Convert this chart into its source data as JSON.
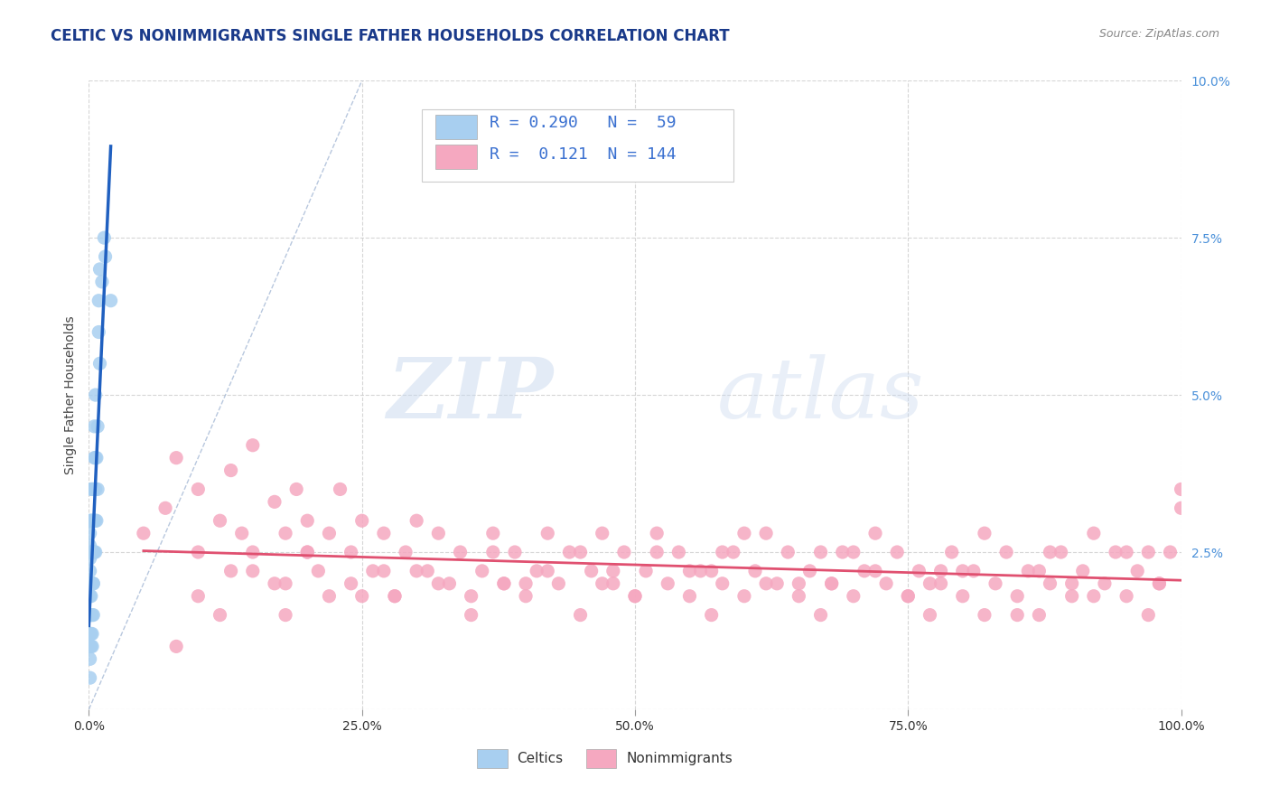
{
  "title": "CELTIC VS NONIMMIGRANTS SINGLE FATHER HOUSEHOLDS CORRELATION CHART",
  "source_text": "Source: ZipAtlas.com",
  "ylabel": "Single Father Households",
  "watermark_zip": "ZIP",
  "watermark_atlas": "atlas",
  "celtics_color": "#a8cff0",
  "nonimmigrants_color": "#f5a8c0",
  "trendline_celtics_color": "#2060c0",
  "trendline_nonimmigrants_color": "#e05070",
  "dashed_line_color": "#9ab0d0",
  "background_color": "#ffffff",
  "grid_color": "#cccccc",
  "legend_box_color": "#e8e8e8",
  "celtics_x": [
    0.001,
    0.001,
    0.001,
    0.001,
    0.001,
    0.001,
    0.001,
    0.001,
    0.001,
    0.001,
    0.001,
    0.001,
    0.001,
    0.001,
    0.001,
    0.001,
    0.002,
    0.002,
    0.002,
    0.002,
    0.002,
    0.002,
    0.002,
    0.002,
    0.003,
    0.003,
    0.003,
    0.003,
    0.003,
    0.003,
    0.003,
    0.004,
    0.004,
    0.004,
    0.004,
    0.004,
    0.004,
    0.005,
    0.005,
    0.005,
    0.005,
    0.005,
    0.006,
    0.006,
    0.006,
    0.006,
    0.006,
    0.007,
    0.007,
    0.008,
    0.008,
    0.009,
    0.009,
    0.01,
    0.01,
    0.012,
    0.014,
    0.015,
    0.02
  ],
  "celtics_y": [
    0.005,
    0.008,
    0.01,
    0.012,
    0.015,
    0.018,
    0.02,
    0.022,
    0.024,
    0.026,
    0.028,
    0.03,
    0.01,
    0.015,
    0.02,
    0.025,
    0.01,
    0.015,
    0.02,
    0.025,
    0.03,
    0.035,
    0.012,
    0.018,
    0.015,
    0.02,
    0.025,
    0.03,
    0.035,
    0.01,
    0.012,
    0.015,
    0.02,
    0.025,
    0.03,
    0.035,
    0.02,
    0.025,
    0.03,
    0.035,
    0.04,
    0.045,
    0.025,
    0.03,
    0.035,
    0.04,
    0.05,
    0.03,
    0.04,
    0.035,
    0.045,
    0.06,
    0.065,
    0.055,
    0.07,
    0.068,
    0.075,
    0.072,
    0.065
  ],
  "nonimmigrants_x": [
    0.05,
    0.07,
    0.08,
    0.1,
    0.1,
    0.12,
    0.13,
    0.13,
    0.14,
    0.15,
    0.15,
    0.17,
    0.18,
    0.18,
    0.19,
    0.2,
    0.2,
    0.21,
    0.22,
    0.23,
    0.24,
    0.24,
    0.25,
    0.26,
    0.27,
    0.28,
    0.29,
    0.3,
    0.31,
    0.32,
    0.33,
    0.34,
    0.35,
    0.36,
    0.37,
    0.38,
    0.39,
    0.4,
    0.41,
    0.42,
    0.43,
    0.44,
    0.45,
    0.46,
    0.47,
    0.48,
    0.49,
    0.5,
    0.51,
    0.52,
    0.53,
    0.54,
    0.55,
    0.56,
    0.57,
    0.58,
    0.59,
    0.6,
    0.61,
    0.62,
    0.63,
    0.64,
    0.65,
    0.66,
    0.67,
    0.68,
    0.69,
    0.7,
    0.71,
    0.72,
    0.73,
    0.74,
    0.75,
    0.76,
    0.77,
    0.78,
    0.79,
    0.8,
    0.81,
    0.82,
    0.83,
    0.84,
    0.85,
    0.86,
    0.87,
    0.88,
    0.89,
    0.9,
    0.91,
    0.92,
    0.93,
    0.94,
    0.95,
    0.96,
    0.97,
    0.98,
    0.99,
    1.0,
    0.1,
    0.15,
    0.2,
    0.25,
    0.3,
    0.35,
    0.4,
    0.45,
    0.5,
    0.55,
    0.6,
    0.65,
    0.7,
    0.75,
    0.8,
    0.85,
    0.9,
    0.95,
    0.12,
    0.22,
    0.32,
    0.42,
    0.52,
    0.62,
    0.72,
    0.82,
    0.92,
    0.17,
    0.27,
    0.37,
    0.47,
    0.57,
    0.67,
    0.77,
    0.87,
    0.97,
    0.08,
    0.18,
    0.28,
    0.38,
    0.48,
    0.58,
    0.68,
    0.78,
    0.88,
    0.98,
    1.0
  ],
  "nonimmigrants_y": [
    0.028,
    0.032,
    0.04,
    0.035,
    0.025,
    0.03,
    0.038,
    0.022,
    0.028,
    0.042,
    0.025,
    0.033,
    0.02,
    0.028,
    0.035,
    0.025,
    0.03,
    0.022,
    0.028,
    0.035,
    0.02,
    0.025,
    0.03,
    0.022,
    0.028,
    0.018,
    0.025,
    0.03,
    0.022,
    0.028,
    0.02,
    0.025,
    0.018,
    0.022,
    0.028,
    0.02,
    0.025,
    0.018,
    0.022,
    0.028,
    0.02,
    0.025,
    0.015,
    0.022,
    0.028,
    0.02,
    0.025,
    0.018,
    0.022,
    0.028,
    0.02,
    0.025,
    0.018,
    0.022,
    0.015,
    0.02,
    0.025,
    0.018,
    0.022,
    0.028,
    0.02,
    0.025,
    0.018,
    0.022,
    0.015,
    0.02,
    0.025,
    0.018,
    0.022,
    0.028,
    0.02,
    0.025,
    0.018,
    0.022,
    0.015,
    0.02,
    0.025,
    0.018,
    0.022,
    0.028,
    0.02,
    0.025,
    0.018,
    0.022,
    0.015,
    0.02,
    0.025,
    0.018,
    0.022,
    0.028,
    0.02,
    0.025,
    0.018,
    0.022,
    0.015,
    0.02,
    0.025,
    0.035,
    0.018,
    0.022,
    0.025,
    0.018,
    0.022,
    0.015,
    0.02,
    0.025,
    0.018,
    0.022,
    0.028,
    0.02,
    0.025,
    0.018,
    0.022,
    0.015,
    0.02,
    0.025,
    0.015,
    0.018,
    0.02,
    0.022,
    0.025,
    0.02,
    0.022,
    0.015,
    0.018,
    0.02,
    0.022,
    0.025,
    0.02,
    0.022,
    0.025,
    0.02,
    0.022,
    0.025,
    0.01,
    0.015,
    0.018,
    0.02,
    0.022,
    0.025,
    0.02,
    0.022,
    0.025,
    0.02,
    0.032
  ],
  "xlim": [
    0.0,
    1.0
  ],
  "ylim": [
    0.0,
    0.1
  ],
  "xticks": [
    0.0,
    0.25,
    0.5,
    0.75,
    1.0
  ],
  "yticks": [
    0.0,
    0.025,
    0.05,
    0.075,
    0.1
  ],
  "xtick_labels": [
    "0.0%",
    "25.0%",
    "50.0%",
    "75.0%",
    "100.0%"
  ],
  "ytick_labels_right": [
    "",
    "2.5%",
    "5.0%",
    "7.5%",
    "10.0%"
  ],
  "title_fontsize": 12,
  "tick_fontsize": 10,
  "legend_r1": "R = 0.290",
  "legend_n1": "N =  59",
  "legend_r2": "R =  0.121",
  "legend_n2": "N = 144"
}
